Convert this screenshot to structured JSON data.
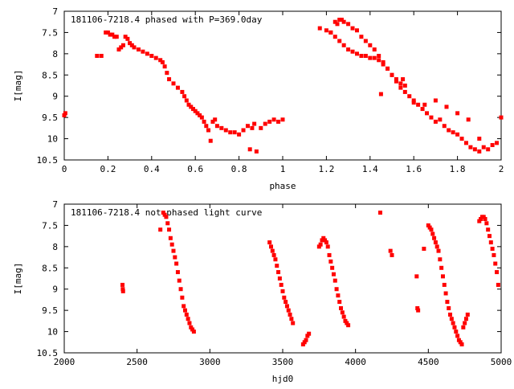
{
  "chart_data": [
    {
      "type": "scatter",
      "title": "181106-7218.4 phased with P=369.0day",
      "xlabel": "phase",
      "ylabel": "I[mag]",
      "xlim": [
        0,
        2
      ],
      "ylim": [
        7,
        10.5
      ],
      "y_inverted": true,
      "xticks": [
        0,
        0.2,
        0.4,
        0.6,
        0.8,
        1,
        1.2,
        1.4,
        1.6,
        1.8,
        2
      ],
      "xtick_labels": [
        "0",
        "0.2",
        "0.4",
        "0.6",
        "0.8",
        "1",
        "1.2",
        "1.4",
        "1.6",
        "1.8",
        "2"
      ],
      "yticks": [
        7,
        7.5,
        8,
        8.5,
        9,
        9.5,
        10,
        10.5
      ],
      "ytick_labels": [
        "7",
        "7.5",
        "8",
        "8.5",
        "9",
        "9.5",
        "10",
        "10.5"
      ],
      "marker_color": "#ff0000",
      "series": [
        {
          "x": [
            0.0,
            0.005,
            0.15,
            0.17,
            0.19,
            0.2,
            0.21,
            0.22,
            0.23,
            0.24,
            0.25,
            0.26,
            0.27,
            0.28,
            0.29,
            0.3,
            0.31,
            0.32,
            0.34,
            0.36,
            0.38,
            0.4,
            0.42,
            0.44,
            0.45,
            0.46,
            0.47,
            0.48,
            0.5,
            0.52,
            0.54,
            0.55,
            0.56,
            0.57,
            0.58,
            0.59,
            0.6,
            0.61,
            0.62,
            0.63,
            0.64,
            0.65,
            0.66,
            0.67,
            0.68,
            0.69,
            0.7,
            0.72,
            0.74,
            0.76,
            0.78,
            0.8,
            0.82,
            0.84,
            0.85,
            0.86,
            0.87,
            0.88,
            0.9,
            0.92,
            0.94,
            0.96,
            0.98,
            1.0,
            1.17,
            1.2,
            1.22,
            1.24,
            1.25,
            1.26,
            1.27,
            1.28,
            1.3,
            1.32,
            1.34,
            1.36,
            1.38,
            1.4,
            1.42,
            1.44,
            1.46,
            1.48,
            1.5,
            1.52,
            1.54,
            1.56,
            1.58,
            1.6,
            1.62,
            1.64,
            1.66,
            1.68,
            1.7,
            1.72,
            1.74,
            1.76,
            1.78,
            1.8,
            1.82,
            1.84,
            1.86,
            1.88,
            1.9,
            1.92,
            1.94,
            1.96,
            1.98,
            2.0,
            1.22,
            1.24,
            1.26,
            1.28,
            1.3,
            1.32,
            1.34,
            1.36,
            1.38,
            1.4,
            1.42,
            1.44,
            1.46,
            1.48,
            1.5,
            1.52,
            1.54,
            1.56,
            1.45,
            1.55,
            1.6,
            1.65,
            1.7,
            1.75,
            1.8,
            1.85,
            1.9
          ],
          "y": [
            9.45,
            9.4,
            8.05,
            8.05,
            7.5,
            7.5,
            7.55,
            7.55,
            7.6,
            7.6,
            7.9,
            7.85,
            7.8,
            7.6,
            7.65,
            7.75,
            7.8,
            7.85,
            7.9,
            7.95,
            8.0,
            8.05,
            8.1,
            8.15,
            8.2,
            8.3,
            8.45,
            8.6,
            8.7,
            8.8,
            8.9,
            9.0,
            9.1,
            9.2,
            9.25,
            9.3,
            9.35,
            9.4,
            9.45,
            9.5,
            9.6,
            9.7,
            9.8,
            10.05,
            9.6,
            9.55,
            9.7,
            9.75,
            9.8,
            9.85,
            9.85,
            9.9,
            9.8,
            9.7,
            10.25,
            9.75,
            9.65,
            10.3,
            9.75,
            9.65,
            9.6,
            9.55,
            9.6,
            9.55,
            7.4,
            7.45,
            7.5,
            7.25,
            7.3,
            7.2,
            7.2,
            7.25,
            7.3,
            7.4,
            7.45,
            7.6,
            7.7,
            7.8,
            7.9,
            8.05,
            8.2,
            8.35,
            8.5,
            8.65,
            8.8,
            8.9,
            9.0,
            9.1,
            9.2,
            9.3,
            9.4,
            9.5,
            9.6,
            9.55,
            9.7,
            9.8,
            9.85,
            9.9,
            10.0,
            10.1,
            10.2,
            10.25,
            10.3,
            10.2,
            10.25,
            10.15,
            10.1,
            9.5,
            7.5,
            7.6,
            7.7,
            7.8,
            7.9,
            7.95,
            8.0,
            8.05,
            8.05,
            8.1,
            8.1,
            8.15,
            8.25,
            8.35,
            8.5,
            8.6,
            8.7,
            8.75,
            8.95,
            8.6,
            9.15,
            9.2,
            9.1,
            9.25,
            9.4,
            9.55,
            10.0
          ]
        }
      ]
    },
    {
      "type": "scatter",
      "title": "181106-7218.4 not phased light curve",
      "xlabel": "hjd0",
      "ylabel": "I[mag]",
      "xlim": [
        2000,
        5000
      ],
      "ylim": [
        7,
        10.5
      ],
      "y_inverted": true,
      "xticks": [
        2000,
        2500,
        3000,
        3500,
        4000,
        4500,
        5000
      ],
      "xtick_labels": [
        "2000",
        "2500",
        "3000",
        "3500",
        "4000",
        "4500",
        "5000"
      ],
      "yticks": [
        7,
        7.5,
        8,
        8.5,
        9,
        9.5,
        10,
        10.5
      ],
      "ytick_labels": [
        "7",
        "7.5",
        "8",
        "8.5",
        "9",
        "9.5",
        "10",
        "10.5"
      ],
      "marker_color": "#ff0000",
      "series": [
        {
          "x": [
            2400,
            2402,
            2404,
            2660,
            2680,
            2690,
            2700,
            2710,
            2720,
            2730,
            2740,
            2750,
            2760,
            2770,
            2780,
            2790,
            2800,
            2810,
            2820,
            2830,
            2840,
            2850,
            2860,
            2870,
            2880,
            2890,
            3410,
            3420,
            3430,
            3440,
            3450,
            3460,
            3470,
            3480,
            3490,
            3500,
            3510,
            3520,
            3530,
            3540,
            3550,
            3560,
            3570,
            3640,
            3650,
            3660,
            3670,
            3680,
            3750,
            3760,
            3770,
            3780,
            3790,
            3800,
            3810,
            3820,
            3830,
            3840,
            3850,
            3860,
            3870,
            3880,
            3890,
            3900,
            3910,
            3920,
            3930,
            3940,
            3950,
            4170,
            4240,
            4250,
            4420,
            4430,
            4425,
            4470,
            4500,
            4510,
            4520,
            4530,
            4540,
            4550,
            4560,
            4570,
            4580,
            4590,
            4600,
            4610,
            4620,
            4630,
            4640,
            4650,
            4660,
            4670,
            4680,
            4690,
            4700,
            4710,
            4720,
            4730,
            4740,
            4750,
            4760,
            4770,
            4850,
            4860,
            4870,
            4880,
            4890,
            4900,
            4910,
            4920,
            4930,
            4940,
            4950,
            4960,
            4970,
            4980
          ],
          "y": [
            8.9,
            9.0,
            9.05,
            7.6,
            7.2,
            7.25,
            7.3,
            7.45,
            7.6,
            7.8,
            7.95,
            8.1,
            8.25,
            8.4,
            8.6,
            8.8,
            9.0,
            9.2,
            9.4,
            9.5,
            9.6,
            9.7,
            9.8,
            9.9,
            9.95,
            10.0,
            7.9,
            8.0,
            8.1,
            8.2,
            8.3,
            8.45,
            8.6,
            8.75,
            8.9,
            9.05,
            9.2,
            9.3,
            9.4,
            9.5,
            9.6,
            9.7,
            9.8,
            10.3,
            10.25,
            10.2,
            10.1,
            10.05,
            8.0,
            7.95,
            7.85,
            7.8,
            7.85,
            7.9,
            8.0,
            8.2,
            8.35,
            8.5,
            8.65,
            8.8,
            9.0,
            9.15,
            9.3,
            9.45,
            9.55,
            9.65,
            9.75,
            9.8,
            9.85,
            7.2,
            8.1,
            8.2,
            8.7,
            9.5,
            9.45,
            8.05,
            7.5,
            7.55,
            7.6,
            7.7,
            7.8,
            7.9,
            8.0,
            8.1,
            8.3,
            8.5,
            8.7,
            8.9,
            9.1,
            9.3,
            9.45,
            9.6,
            9.7,
            9.8,
            9.9,
            10.0,
            10.1,
            10.2,
            10.25,
            10.3,
            9.9,
            9.8,
            9.7,
            9.6,
            7.4,
            7.35,
            7.3,
            7.3,
            7.35,
            7.45,
            7.6,
            7.75,
            7.9,
            8.05,
            8.2,
            8.4,
            8.6,
            8.9
          ]
        }
      ]
    }
  ]
}
